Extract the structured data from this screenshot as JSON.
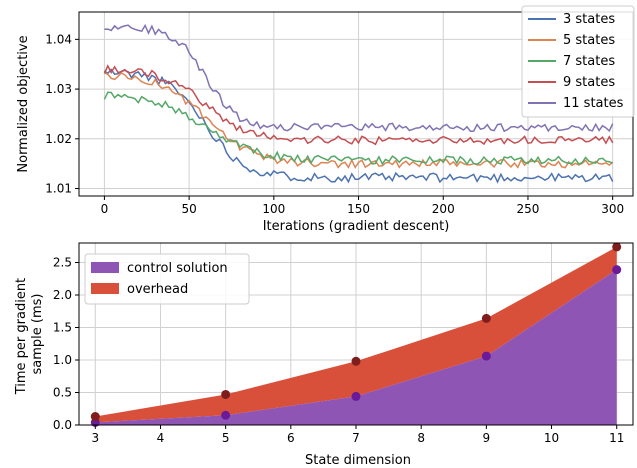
{
  "chart_data": [
    {
      "type": "line",
      "xlabel": "Iterations (gradient descent)",
      "ylabel": "Normalized objective",
      "xlim": [
        -15,
        312
      ],
      "ylim": [
        1.0085,
        1.0455
      ],
      "xticks": [
        0,
        50,
        100,
        150,
        200,
        250,
        300
      ],
      "yticks": [
        1.01,
        1.02,
        1.03,
        1.04
      ],
      "grid": true,
      "legend_position": "top-right",
      "series": [
        {
          "name": "3 states",
          "color": "#4c72b0",
          "start": 1.0335,
          "end": 1.0122,
          "decay": 25,
          "noise": 0.0009,
          "seed": 11
        },
        {
          "name": "5 states",
          "color": "#dd8452",
          "start": 1.033,
          "end": 1.015,
          "decay": 30,
          "noise": 0.0008,
          "seed": 23
        },
        {
          "name": "7 states",
          "color": "#55a868",
          "start": 1.029,
          "end": 1.0157,
          "decay": 34,
          "noise": 0.0008,
          "seed": 37
        },
        {
          "name": "9 states",
          "color": "#c44e52",
          "start": 1.034,
          "end": 1.0197,
          "decay": 28,
          "noise": 0.0008,
          "seed": 41
        },
        {
          "name": "11 states",
          "color": "#8172b3",
          "start": 1.0425,
          "end": 1.0223,
          "decay": 20,
          "noise": 0.0008,
          "seed": 53
        }
      ]
    },
    {
      "type": "area",
      "xlabel": "State dimension",
      "ylabel": "Time per gradient sample (ms)",
      "xlim": [
        2.75,
        11.25
      ],
      "ylim": [
        0,
        2.8
      ],
      "xticks": [
        3,
        4,
        5,
        6,
        7,
        8,
        9,
        10,
        11
      ],
      "yticks": [
        0.0,
        0.5,
        1.0,
        1.5,
        2.0,
        2.5
      ],
      "ytick_labels": [
        "0.0",
        "0.5",
        "1.0",
        "1.5",
        "2.0",
        "2.5"
      ],
      "grid": true,
      "legend_position": "top-left",
      "x": [
        3,
        5,
        7,
        9,
        11
      ],
      "series": [
        {
          "name": "control solution",
          "color": "#8e55b5",
          "marker_color": "#6a1b9a",
          "values": [
            0.04,
            0.15,
            0.44,
            1.06,
            2.39
          ]
        },
        {
          "name": "overhead",
          "color": "#d9503a",
          "marker_color": "#7f1d1d",
          "values": [
            0.13,
            0.47,
            0.98,
            1.64,
            2.74
          ]
        }
      ]
    }
  ]
}
